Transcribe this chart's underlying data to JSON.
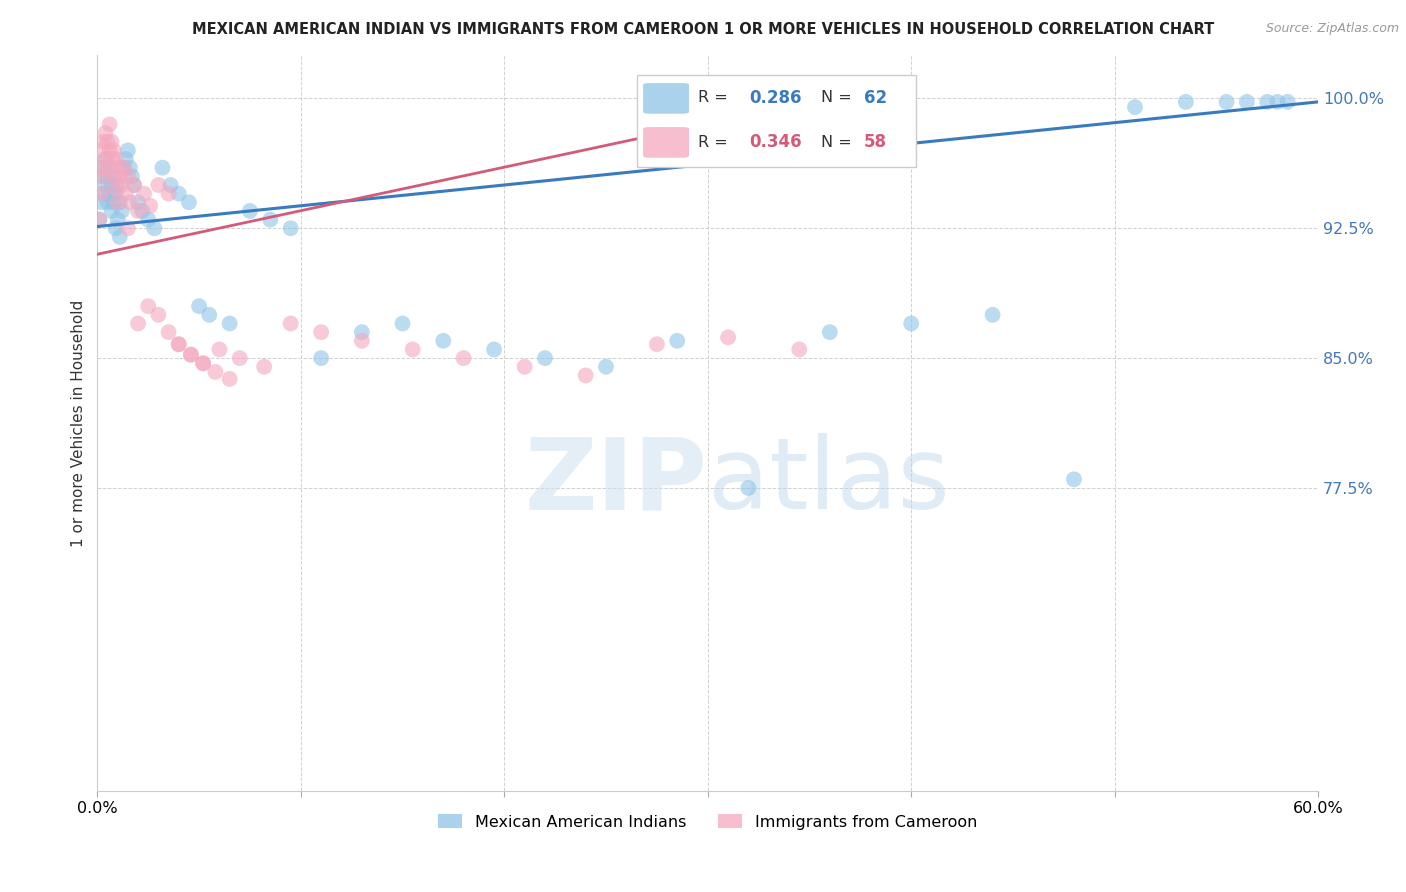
{
  "title": "MEXICAN AMERICAN INDIAN VS IMMIGRANTS FROM CAMEROON 1 OR MORE VEHICLES IN HOUSEHOLD CORRELATION CHART",
  "source": "Source: ZipAtlas.com",
  "ylabel": "1 or more Vehicles in Household",
  "x_min": 0.0,
  "x_max": 0.6,
  "y_min": 0.6,
  "y_max": 1.025,
  "y_ticks": [
    0.775,
    0.85,
    0.925,
    1.0
  ],
  "y_tick_labels": [
    "77.5%",
    "85.0%",
    "92.5%",
    "100.0%"
  ],
  "x_tick_labels": [
    "0.0%",
    "",
    "",
    "",
    "",
    "",
    "60.0%"
  ],
  "R_blue": 0.286,
  "N_blue": 62,
  "R_pink": 0.346,
  "N_pink": 58,
  "legend_labels": [
    "Mexican American Indians",
    "Immigrants from Cameroon"
  ],
  "blue_color": "#8ec4e8",
  "pink_color": "#f4a8be",
  "blue_line_color": "#3a7abf",
  "pink_line_color": "#d45a7a",
  "blue_scatter_x": [
    0.001,
    0.002,
    0.002,
    0.003,
    0.003,
    0.004,
    0.004,
    0.005,
    0.005,
    0.006,
    0.006,
    0.007,
    0.007,
    0.008,
    0.008,
    0.009,
    0.009,
    0.01,
    0.01,
    0.011,
    0.011,
    0.012,
    0.013,
    0.014,
    0.015,
    0.016,
    0.017,
    0.018,
    0.02,
    0.022,
    0.025,
    0.028,
    0.032,
    0.036,
    0.04,
    0.045,
    0.05,
    0.055,
    0.065,
    0.075,
    0.085,
    0.095,
    0.11,
    0.13,
    0.15,
    0.17,
    0.195,
    0.22,
    0.25,
    0.285,
    0.32,
    0.36,
    0.4,
    0.44,
    0.48,
    0.51,
    0.535,
    0.555,
    0.565,
    0.575,
    0.58,
    0.585
  ],
  "blue_scatter_y": [
    0.93,
    0.94,
    0.955,
    0.945,
    0.96,
    0.95,
    0.965,
    0.94,
    0.955,
    0.945,
    0.96,
    0.935,
    0.95,
    0.94,
    0.955,
    0.925,
    0.945,
    0.93,
    0.95,
    0.92,
    0.94,
    0.935,
    0.96,
    0.965,
    0.97,
    0.96,
    0.955,
    0.95,
    0.94,
    0.935,
    0.93,
    0.925,
    0.96,
    0.95,
    0.945,
    0.94,
    0.88,
    0.875,
    0.87,
    0.935,
    0.93,
    0.925,
    0.85,
    0.865,
    0.87,
    0.86,
    0.855,
    0.85,
    0.845,
    0.86,
    0.775,
    0.865,
    0.87,
    0.875,
    0.78,
    0.995,
    0.998,
    0.998,
    0.998,
    0.998,
    0.998,
    0.998
  ],
  "pink_scatter_x": [
    0.001,
    0.001,
    0.002,
    0.002,
    0.003,
    0.003,
    0.004,
    0.004,
    0.005,
    0.005,
    0.006,
    0.006,
    0.007,
    0.007,
    0.008,
    0.008,
    0.009,
    0.009,
    0.01,
    0.01,
    0.011,
    0.012,
    0.013,
    0.014,
    0.015,
    0.016,
    0.018,
    0.02,
    0.023,
    0.026,
    0.03,
    0.035,
    0.04,
    0.046,
    0.052,
    0.06,
    0.07,
    0.082,
    0.095,
    0.11,
    0.13,
    0.155,
    0.18,
    0.21,
    0.24,
    0.275,
    0.31,
    0.345,
    0.015,
    0.02,
    0.025,
    0.03,
    0.035,
    0.04,
    0.046,
    0.052,
    0.058,
    0.065
  ],
  "pink_scatter_y": [
    0.93,
    0.96,
    0.945,
    0.97,
    0.955,
    0.975,
    0.965,
    0.98,
    0.96,
    0.975,
    0.985,
    0.97,
    0.965,
    0.975,
    0.955,
    0.97,
    0.948,
    0.965,
    0.94,
    0.96,
    0.955,
    0.95,
    0.96,
    0.945,
    0.955,
    0.94,
    0.95,
    0.935,
    0.945,
    0.938,
    0.95,
    0.945,
    0.858,
    0.852,
    0.847,
    0.855,
    0.85,
    0.845,
    0.87,
    0.865,
    0.86,
    0.855,
    0.85,
    0.845,
    0.84,
    0.858,
    0.862,
    0.855,
    0.925,
    0.87,
    0.88,
    0.875,
    0.865,
    0.858,
    0.852,
    0.847,
    0.842,
    0.838
  ]
}
